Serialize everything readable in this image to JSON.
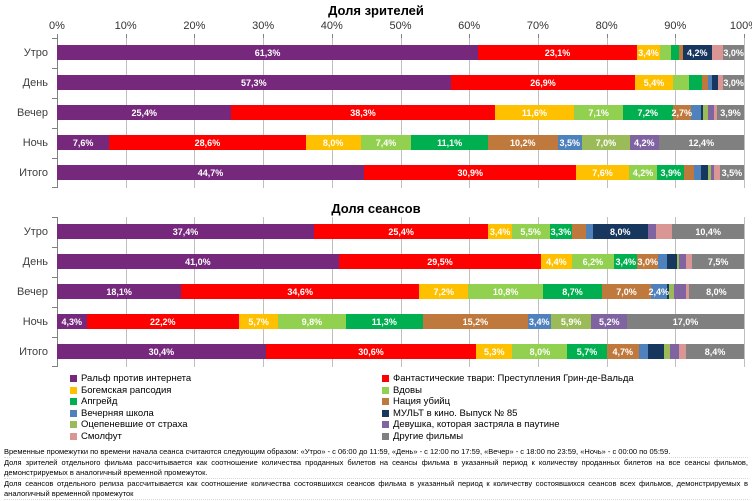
{
  "chart_data": [
    {
      "type": "bar",
      "stacked": true,
      "orientation": "horizontal",
      "title": "Доля зрителей",
      "axis_visible": true,
      "axis_ticks": [
        "0%",
        "10%",
        "20%",
        "30%",
        "40%",
        "50%",
        "60%",
        "70%",
        "80%",
        "90%",
        "100%"
      ],
      "xlim": [
        0,
        100
      ],
      "grid": true,
      "categories": [
        "Утро",
        "День",
        "Вечер",
        "Ночь",
        "Итого"
      ],
      "series_names": [
        "Ральф против интернета",
        "Фантастические твари: Преступления Грин-де-Вальда",
        "Богемская рапсодия",
        "Вдовы",
        "Апгрейд",
        "Нация убийц",
        "Вечерняя школа",
        "МУЛЬТ в кино. Выпуск № 85",
        "Оцепеневшие от страха",
        "Девушка, которая застряла в паутине",
        "Смолфут",
        "Другие фильмы"
      ],
      "rows": [
        {
          "category": "Утро",
          "values": [
            61.3,
            23.1,
            3.4,
            1.6,
            1.2,
            0.5,
            0,
            4.2,
            0,
            0,
            1.7,
            3.0
          ],
          "labels": [
            "61,3%",
            "23,1%",
            "3,4%",
            "",
            "",
            "",
            "",
            "4,2%",
            "",
            "",
            "",
            "3,0%"
          ]
        },
        {
          "category": "День",
          "values": [
            57.3,
            26.9,
            5.4,
            2.4,
            1.9,
            0.8,
            0.6,
            0.9,
            0,
            0,
            0.8,
            3.0
          ],
          "labels": [
            "57,3%",
            "26,9%",
            "5,4%",
            "",
            "",
            "",
            "",
            "",
            "",
            "",
            "",
            "3,0%"
          ]
        },
        {
          "category": "Вечер",
          "values": [
            25.4,
            38.3,
            11.6,
            7.1,
            7.2,
            2.7,
            1.5,
            0.3,
            0.7,
            0.8,
            0.5,
            3.9
          ],
          "labels": [
            "25,4%",
            "38,3%",
            "11,6%",
            "7,1%",
            "7,2%",
            "2,7%",
            "",
            "",
            "",
            "",
            "",
            "3,9%"
          ]
        },
        {
          "category": "Ночь",
          "values": [
            7.6,
            28.6,
            8.0,
            7.4,
            11.1,
            10.2,
            3.5,
            0,
            7.0,
            4.2,
            0,
            12.4
          ],
          "labels": [
            "7,6%",
            "28,6%",
            "8,0%",
            "7,4%",
            "11,1%",
            "10,2%",
            "3,5%",
            "",
            "7,0%",
            "4,2%",
            "",
            "12,4%"
          ]
        },
        {
          "category": "Итого",
          "values": [
            44.7,
            30.9,
            7.6,
            4.2,
            3.9,
            1.5,
            1.0,
            1.0,
            0.4,
            0.5,
            0.8,
            3.5
          ],
          "labels": [
            "44,7%",
            "30,9%",
            "7,6%",
            "4,2%",
            "3,9%",
            "",
            "",
            "",
            "",
            "",
            "",
            "3,5%"
          ]
        }
      ]
    },
    {
      "type": "bar",
      "stacked": true,
      "orientation": "horizontal",
      "title": "Доля сеансов",
      "axis_visible": false,
      "xlim": [
        0,
        100
      ],
      "grid": true,
      "categories": [
        "Утро",
        "День",
        "Вечер",
        "Ночь",
        "Итого"
      ],
      "series_names": [
        "Ральф против интернета",
        "Фантастические твари: Преступления Грин-де-Вальда",
        "Богемская рапсодия",
        "Вдовы",
        "Апгрейд",
        "Нация убийц",
        "Вечерняя школа",
        "МУЛЬТ в кино. Выпуск № 85",
        "Оцепеневшие от страха",
        "Девушка, которая застряла в паутине",
        "Смолфут",
        "Другие фильмы"
      ],
      "rows": [
        {
          "category": "Утро",
          "values": [
            37.4,
            25.4,
            3.4,
            5.5,
            3.3,
            2.0,
            1.0,
            8.0,
            0,
            1.2,
            2.4,
            10.4
          ],
          "labels": [
            "37,4%",
            "25,4%",
            "3,4%",
            "5,5%",
            "3,3%",
            "",
            "",
            "8,0%",
            "",
            "",
            "",
            "10,4%"
          ]
        },
        {
          "category": "День",
          "values": [
            41.0,
            29.5,
            4.4,
            6.2,
            3.4,
            3.0,
            1.3,
            1.4,
            0.4,
            1.0,
            0.9,
            7.5
          ],
          "labels": [
            "41,0%",
            "29,5%",
            "4,4%",
            "6,2%",
            "3,4%",
            "3,0%",
            "",
            "",
            "",
            "",
            "",
            "7,5%"
          ]
        },
        {
          "category": "Вечер",
          "values": [
            18.1,
            34.6,
            7.2,
            10.8,
            8.7,
            7.0,
            2.4,
            0.3,
            0.7,
            1.7,
            0.5,
            8.0
          ],
          "labels": [
            "18,1%",
            "34,6%",
            "7,2%",
            "10,8%",
            "8,7%",
            "7,0%",
            "2,4%",
            "",
            "",
            "",
            "",
            "8,0%"
          ]
        },
        {
          "category": "Ночь",
          "values": [
            4.3,
            22.2,
            5.7,
            9.8,
            11.3,
            15.2,
            3.4,
            0,
            5.9,
            5.2,
            0,
            17.0
          ],
          "labels": [
            "4,3%",
            "22,2%",
            "5,7%",
            "9,8%",
            "11,3%",
            "15,2%",
            "3,4%",
            "",
            "5,9%",
            "5,2%",
            "",
            "17,0%"
          ]
        },
        {
          "category": "Итого",
          "values": [
            30.4,
            30.6,
            5.3,
            8.0,
            5.7,
            4.7,
            1.4,
            2.2,
            0.9,
            1.3,
            1.1,
            8.4
          ],
          "labels": [
            "30,4%",
            "30,6%",
            "5,3%",
            "8,0%",
            "5,7%",
            "4,7%",
            "",
            "",
            "",
            "",
            "",
            "8,4%"
          ]
        }
      ]
    }
  ],
  "legend": {
    "items": [
      {
        "label": "Ральф против интернета",
        "color": "#76287D"
      },
      {
        "label": "Фантастические твари: Преступления Грин-де-Вальда",
        "color": "#FF0000"
      },
      {
        "label": "Богемская рапсодия",
        "color": "#FFC000"
      },
      {
        "label": "Вдовы",
        "color": "#92D050"
      },
      {
        "label": "Апгрейд",
        "color": "#00B050"
      },
      {
        "label": "Нация убийц",
        "color": "#C0793C"
      },
      {
        "label": "Вечерняя школа",
        "color": "#4F81BD"
      },
      {
        "label": "МУЛЬТ в кино. Выпуск № 85",
        "color": "#17375E"
      },
      {
        "label": "Оцепеневшие от страха",
        "color": "#9BBB59"
      },
      {
        "label": "Девушка, которая застряла в паутине",
        "color": "#8064A2"
      },
      {
        "label": "Смолфут",
        "color": "#D99694"
      },
      {
        "label": "Другие фильмы",
        "color": "#808080"
      }
    ]
  },
  "footnotes": {
    "lines": [
      "Временные промежутки по времени начала сеанса считаются следующим образом: «Утро» - с 06:00 до 11:59, «День» - с 12:00 по 17:59, «Вечер» - с 18:00 по 23:59, «Ночь» - с 00:00 по 05:59.",
      "Доля зрителей отдельного фильма рассчитывается как соотношение количества проданных билетов на сеансы фильма в указанный период к количеству проданных билетов на все сеансы фильмов, демонстрируемых в аналогичный временной промежуток.",
      "Доля сеансов отдельного релиза рассчитывается как соотношение количества состоявшихся сеансов фильма в указанный период к количеству состоявшихся сеансов всех фильмов, демонстрируемых в аналогичный временной промежуток"
    ]
  },
  "colors": {
    "gridline": "#BFBFBF",
    "axis": "#808080",
    "bar_label": "#FFFFFF"
  }
}
